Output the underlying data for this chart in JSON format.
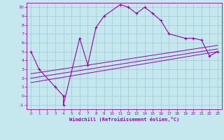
{
  "xlabel": "Windchill (Refroidissement éolien,°C)",
  "bg_color": "#c5e8ef",
  "grid_color": "#a0c8d4",
  "line_color": "#9900aa",
  "xlim": [
    -0.5,
    23.5
  ],
  "ylim": [
    -1.5,
    10.5
  ],
  "xticks": [
    0,
    1,
    2,
    3,
    4,
    5,
    6,
    7,
    8,
    9,
    10,
    11,
    12,
    13,
    14,
    15,
    16,
    17,
    18,
    19,
    20,
    21,
    22,
    23
  ],
  "yticks": [
    -1,
    0,
    1,
    2,
    3,
    4,
    5,
    6,
    7,
    8,
    9,
    10
  ],
  "line1_x": [
    0,
    1,
    3,
    4,
    4,
    6,
    7,
    8,
    9,
    11,
    12,
    13,
    14,
    15,
    16,
    17,
    19,
    20,
    21,
    22,
    23
  ],
  "line1_y": [
    5,
    3,
    1,
    0,
    -1,
    6.5,
    3.5,
    7.7,
    9,
    10.3,
    10,
    9.3,
    10,
    9.3,
    8.5,
    7.0,
    6.5,
    6.5,
    6.3,
    4.5,
    5.0
  ],
  "line2_x": [
    0,
    23
  ],
  "line2_y": [
    1.5,
    5.0
  ],
  "line3_x": [
    0,
    23
  ],
  "line3_y": [
    2.0,
    5.3
  ],
  "line4_x": [
    0,
    23
  ],
  "line4_y": [
    2.5,
    5.7
  ]
}
